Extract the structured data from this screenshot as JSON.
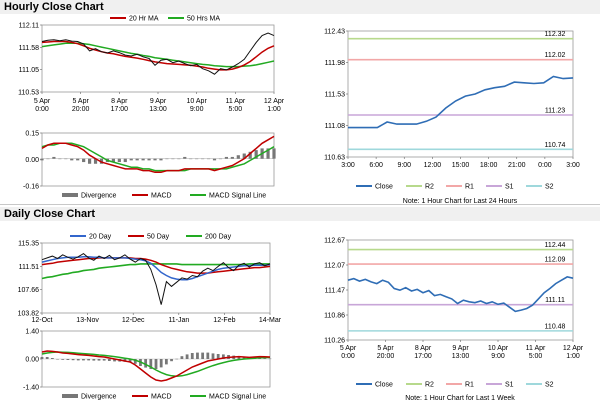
{
  "section_titles": {
    "hourly": "Hourly Close Chart",
    "daily": "Daily Close Chart"
  },
  "colors": {
    "price": "#111111",
    "ma_short": "#c00000",
    "ma_long": "#22aa22",
    "ma_200": "#22aa22",
    "ma_20day": "#3366cc",
    "macd": "#c00000",
    "macd_signal": "#22aa22",
    "divergence": "#777777",
    "close": "#2f6db5",
    "r2": "#b7d98c",
    "r1": "#f2a7a7",
    "s1": "#c8a6d8",
    "s2": "#9fd8dc"
  },
  "chart_data": [
    {
      "id": "hourly_price",
      "type": "line",
      "legend": [
        "20 Hr MA",
        "50 Hrs MA"
      ],
      "ylim": [
        110.53,
        112.11
      ],
      "yticks": [
        "112.11",
        "111.58",
        "111.05",
        "110.53"
      ],
      "xticks": [
        "5 Apr\n0:00",
        "5 Apr\n20:00",
        "8 Apr\n17:00",
        "9 Apr\n13:00",
        "10 Apr\n9:00",
        "11 Apr\n5:00",
        "12 Apr\n1:00"
      ],
      "series": [
        {
          "name": "Close",
          "values": [
            111.72,
            111.75,
            111.76,
            111.74,
            111.76,
            111.73,
            111.72,
            111.66,
            111.5,
            111.55,
            111.48,
            111.45,
            111.5,
            111.46,
            111.4,
            111.38,
            111.42,
            111.36,
            111.32,
            111.16,
            111.28,
            111.3,
            111.22,
            111.26,
            111.2,
            111.15,
            111.18,
            111.08,
            111.03,
            110.95,
            111.08,
            111.05,
            111.12,
            111.2,
            111.3,
            111.5,
            111.7,
            111.86,
            111.92,
            111.86
          ]
        },
        {
          "name": "20 Hr MA",
          "values": [
            111.7,
            111.71,
            111.72,
            111.72,
            111.72,
            111.7,
            111.67,
            111.62,
            111.56,
            111.52,
            111.48,
            111.45,
            111.43,
            111.4,
            111.37,
            111.35,
            111.33,
            111.3,
            111.27,
            111.24,
            111.22,
            111.2,
            111.19,
            111.18,
            111.17,
            111.16,
            111.14,
            111.12,
            111.09,
            111.07,
            111.05,
            111.05,
            111.07,
            111.11,
            111.17,
            111.25,
            111.36,
            111.47,
            111.56,
            111.62
          ]
        },
        {
          "name": "50 Hrs MA",
          "values": [
            111.6,
            111.62,
            111.64,
            111.66,
            111.68,
            111.68,
            111.68,
            111.67,
            111.65,
            111.62,
            111.59,
            111.56,
            111.53,
            111.5,
            111.47,
            111.44,
            111.42,
            111.39,
            111.37,
            111.34,
            111.32,
            111.3,
            111.28,
            111.26,
            111.24,
            111.22,
            111.2,
            111.18,
            111.17,
            111.15,
            111.14,
            111.13,
            111.13,
            111.13,
            111.14,
            111.15,
            111.17,
            111.2,
            111.23,
            111.26
          ]
        }
      ]
    },
    {
      "id": "hourly_macd",
      "type": "line",
      "legend": [
        "Divergence",
        "MACD",
        "MACD Signal Line"
      ],
      "ylim": [
        -0.16,
        0.15
      ],
      "yticks": [
        "0.15",
        "0.00",
        "-0.16"
      ],
      "series": [
        {
          "name": "MACD",
          "values": [
            0.06,
            0.08,
            0.09,
            0.09,
            0.09,
            0.08,
            0.07,
            0.05,
            0.02,
            0.0,
            -0.02,
            -0.03,
            -0.04,
            -0.05,
            -0.06,
            -0.06,
            -0.06,
            -0.07,
            -0.07,
            -0.08,
            -0.08,
            -0.07,
            -0.07,
            -0.07,
            -0.06,
            -0.06,
            -0.06,
            -0.06,
            -0.06,
            -0.07,
            -0.06,
            -0.05,
            -0.04,
            -0.02,
            0.0,
            0.03,
            0.06,
            0.09,
            0.11,
            0.13
          ]
        },
        {
          "name": "MACD Signal Line",
          "values": [
            0.07,
            0.08,
            0.08,
            0.09,
            0.09,
            0.09,
            0.08,
            0.07,
            0.05,
            0.03,
            0.01,
            -0.01,
            -0.02,
            -0.03,
            -0.04,
            -0.05,
            -0.05,
            -0.06,
            -0.06,
            -0.07,
            -0.07,
            -0.07,
            -0.07,
            -0.07,
            -0.07,
            -0.06,
            -0.06,
            -0.06,
            -0.06,
            -0.06,
            -0.06,
            -0.06,
            -0.05,
            -0.04,
            -0.03,
            -0.01,
            0.01,
            0.03,
            0.05,
            0.07
          ]
        },
        {
          "name": "Divergence",
          "values": [
            -0.01,
            0.0,
            0.01,
            0.0,
            0.0,
            -0.01,
            -0.01,
            -0.02,
            -0.03,
            -0.03,
            -0.03,
            -0.02,
            -0.02,
            -0.02,
            -0.02,
            -0.01,
            -0.01,
            -0.01,
            -0.01,
            -0.01,
            -0.01,
            0.0,
            0.0,
            0.0,
            0.01,
            0.0,
            0.0,
            0.0,
            0.0,
            -0.01,
            0.0,
            0.01,
            0.01,
            0.02,
            0.03,
            0.04,
            0.05,
            0.06,
            0.06,
            0.06
          ]
        }
      ]
    },
    {
      "id": "hourly_24h",
      "type": "line",
      "ylim": [
        110.63,
        112.43
      ],
      "yticks": [
        "112.43",
        "111.98",
        "111.53",
        "111.08",
        "110.63"
      ],
      "xticks": [
        "3:00",
        "6:00",
        "9:00",
        "12:00",
        "15:00",
        "18:00",
        "21:00",
        "0:00",
        "3:00"
      ],
      "legend": [
        "Close",
        "R2",
        "R1",
        "S1",
        "S2"
      ],
      "levels": [
        {
          "name": "R2",
          "value": 112.32,
          "label": "112.32"
        },
        {
          "name": "R1",
          "value": 112.02,
          "label": "112.02"
        },
        {
          "name": "S1",
          "value": 111.23,
          "label": "111.23"
        },
        {
          "name": "S2",
          "value": 110.74,
          "label": "110.74"
        }
      ],
      "series": [
        {
          "name": "Close",
          "values": [
            111.05,
            111.05,
            111.05,
            111.05,
            111.13,
            111.1,
            111.1,
            111.1,
            111.14,
            111.2,
            111.33,
            111.43,
            111.5,
            111.53,
            111.59,
            111.62,
            111.64,
            111.7,
            111.69,
            111.68,
            111.69,
            111.78,
            111.75,
            111.76
          ]
        }
      ],
      "note": "Note: 1 Hour Chart for Last 24 Hours"
    },
    {
      "id": "daily_price",
      "type": "line",
      "legend": [
        "20 Day",
        "50 Day",
        "200 Day"
      ],
      "ylim": [
        103.82,
        115.35
      ],
      "yticks": [
        "115.35",
        "111.51",
        "107.66",
        "103.82"
      ],
      "xticks": [
        "12-Oct",
        "13-Nov",
        "12-Dec",
        "11-Jan",
        "12-Feb",
        "14-Mar"
      ],
      "series": [
        {
          "name": "Close",
          "values": [
            112.6,
            112.9,
            113.2,
            112.8,
            113.4,
            113.0,
            112.7,
            113.1,
            113.6,
            112.9,
            112.5,
            113.2,
            112.8,
            113.3,
            112.6,
            112.9,
            113.4,
            112.7,
            112.2,
            112.8,
            112.5,
            111.0,
            108.5,
            105.2,
            109.0,
            108.2,
            108.9,
            109.6,
            109.4,
            110.0,
            109.8,
            110.7,
            111.2,
            110.8,
            111.5,
            112.1,
            111.3,
            110.8,
            111.7,
            112.0,
            111.4,
            111.9,
            112.1,
            111.6,
            111.9
          ]
        },
        {
          "name": "20 Day",
          "values": [
            112.2,
            112.4,
            112.6,
            112.8,
            112.9,
            113.0,
            113.0,
            113.0,
            113.1,
            113.1,
            113.0,
            113.0,
            112.9,
            112.9,
            112.9,
            112.9,
            112.9,
            112.8,
            112.7,
            112.6,
            112.4,
            112.0,
            111.3,
            110.5,
            110.0,
            109.6,
            109.4,
            109.3,
            109.3,
            109.5,
            109.8,
            110.1,
            110.4,
            110.7,
            111.0,
            111.2,
            111.3,
            111.4,
            111.5,
            111.6,
            111.6,
            111.7,
            111.7,
            111.7,
            111.8
          ]
        },
        {
          "name": "50 Day",
          "values": [
            111.8,
            111.9,
            112.0,
            112.2,
            112.3,
            112.4,
            112.5,
            112.6,
            112.7,
            112.8,
            112.8,
            112.9,
            112.9,
            112.9,
            112.9,
            112.9,
            112.9,
            112.9,
            112.8,
            112.8,
            112.7,
            112.5,
            112.2,
            111.8,
            111.5,
            111.2,
            111.0,
            110.8,
            110.6,
            110.5,
            110.4,
            110.4,
            110.4,
            110.5,
            110.6,
            110.7,
            110.8,
            110.9,
            111.0,
            111.1,
            111.2,
            111.3,
            111.3,
            111.4,
            111.5
          ]
        },
        {
          "name": "200 Day",
          "values": [
            109.5,
            109.7,
            109.8,
            110.0,
            110.2,
            110.3,
            110.5,
            110.6,
            110.8,
            110.9,
            111.0,
            111.2,
            111.3,
            111.4,
            111.5,
            111.6,
            111.7,
            111.8,
            111.8,
            111.9,
            111.9,
            111.9,
            111.9,
            111.9,
            111.9,
            111.9,
            111.9,
            111.8,
            111.8,
            111.8,
            111.8,
            111.8,
            111.8,
            111.8,
            111.8,
            111.8,
            111.8,
            111.8,
            111.8,
            111.8,
            111.9,
            111.9,
            111.9,
            111.9,
            111.9
          ]
        }
      ]
    },
    {
      "id": "daily_macd",
      "type": "line",
      "legend": [
        "Divergence",
        "MACD",
        "MACD Signal Line"
      ],
      "ylim": [
        -1.4,
        1.4
      ],
      "yticks": [
        "1.40",
        "0.00",
        "-1.40"
      ],
      "series": [
        {
          "name": "MACD",
          "values": [
            0.35,
            0.4,
            0.38,
            0.35,
            0.3,
            0.28,
            0.25,
            0.22,
            0.2,
            0.18,
            0.15,
            0.12,
            0.1,
            0.05,
            0.0,
            -0.05,
            -0.1,
            -0.15,
            -0.3,
            -0.5,
            -0.7,
            -0.9,
            -1.05,
            -1.1,
            -1.05,
            -0.95,
            -0.85,
            -0.7,
            -0.55,
            -0.4,
            -0.3,
            -0.2,
            -0.1,
            -0.05,
            0.0,
            0.05,
            0.08,
            0.1,
            0.12,
            0.1,
            0.08,
            0.1,
            0.12,
            0.11,
            0.1
          ]
        },
        {
          "name": "MACD Signal Line",
          "values": [
            0.25,
            0.3,
            0.33,
            0.35,
            0.34,
            0.33,
            0.31,
            0.29,
            0.27,
            0.25,
            0.23,
            0.2,
            0.18,
            0.15,
            0.12,
            0.08,
            0.04,
            0.0,
            -0.06,
            -0.15,
            -0.27,
            -0.4,
            -0.55,
            -0.68,
            -0.78,
            -0.84,
            -0.86,
            -0.84,
            -0.78,
            -0.7,
            -0.62,
            -0.52,
            -0.42,
            -0.33,
            -0.25,
            -0.18,
            -0.12,
            -0.07,
            -0.03,
            0.0,
            0.02,
            0.04,
            0.06,
            0.07,
            0.08
          ]
        },
        {
          "name": "Divergence",
          "values": [
            0.1,
            0.1,
            0.05,
            0.0,
            -0.04,
            -0.05,
            -0.06,
            -0.07,
            -0.07,
            -0.07,
            -0.08,
            -0.08,
            -0.08,
            -0.1,
            -0.12,
            -0.13,
            -0.14,
            -0.15,
            -0.24,
            -0.35,
            -0.43,
            -0.5,
            -0.5,
            -0.42,
            -0.27,
            -0.11,
            0.01,
            0.14,
            0.23,
            0.3,
            0.32,
            0.32,
            0.32,
            0.28,
            0.25,
            0.23,
            0.2,
            0.17,
            0.15,
            0.1,
            0.06,
            0.06,
            0.06,
            0.04,
            0.02
          ]
        }
      ]
    },
    {
      "id": "daily_week",
      "type": "line",
      "ylim": [
        110.26,
        112.67
      ],
      "yticks": [
        "112.67",
        "112.07",
        "111.47",
        "110.86",
        "110.26"
      ],
      "xticks": [
        "5 Apr\n0:00",
        "5 Apr\n20:00",
        "8 Apr\n17:00",
        "9 Apr\n13:00",
        "10 Apr\n9:00",
        "11 Apr\n5:00",
        "12 Apr\n1:00"
      ],
      "legend": [
        "Close",
        "R2",
        "R1",
        "S1",
        "S2"
      ],
      "levels": [
        {
          "name": "R2",
          "value": 112.44,
          "label": "112.44"
        },
        {
          "name": "R1",
          "value": 112.09,
          "label": "112.09"
        },
        {
          "name": "S1",
          "value": 111.11,
          "label": "111.11"
        },
        {
          "name": "S2",
          "value": 110.48,
          "label": "110.48"
        }
      ],
      "series": [
        {
          "name": "Close",
          "values": [
            111.7,
            111.74,
            111.68,
            111.72,
            111.66,
            111.62,
            111.7,
            111.65,
            111.5,
            111.46,
            111.52,
            111.44,
            111.48,
            111.4,
            111.45,
            111.33,
            111.36,
            111.3,
            111.25,
            111.14,
            111.22,
            111.18,
            111.16,
            111.2,
            111.14,
            111.18,
            111.12,
            111.15,
            111.05,
            110.95,
            110.98,
            111.02,
            111.1,
            111.25,
            111.4,
            111.5,
            111.62,
            111.7,
            111.78,
            111.75
          ]
        }
      ],
      "note": "Note: 1 Hour Chart for Last 1 Week"
    }
  ]
}
